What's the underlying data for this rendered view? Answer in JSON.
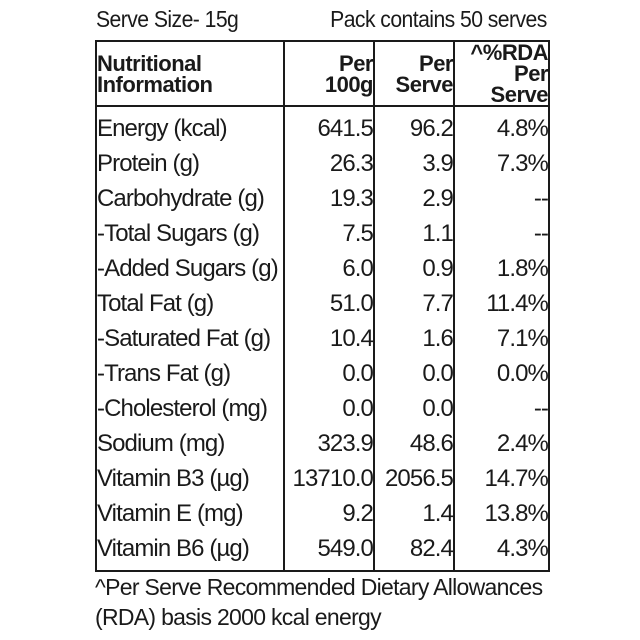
{
  "serve_size": "Serve Size- 15g",
  "pack_contains": "Pack contains 50 serves",
  "headers": {
    "col1_line1": "Nutritional",
    "col1_line2": "Information",
    "col2_line1": "Per",
    "col2_line2": "100g",
    "col3_line1": "Per",
    "col3_line2": "Serve",
    "col4_line1": "^%RDA",
    "col4_line2": "Per Serve"
  },
  "rows": [
    {
      "name": "Energy (kcal)",
      "per100g": "641.5",
      "perServe": "96.2",
      "rda": "4.8%"
    },
    {
      "name": "Protein (g)",
      "per100g": "26.3",
      "perServe": "3.9",
      "rda": "7.3%"
    },
    {
      "name": "Carbohydrate (g)",
      "per100g": "19.3",
      "perServe": "2.9",
      "rda": "--"
    },
    {
      "name": "-Total Sugars (g)",
      "per100g": "7.5",
      "perServe": "1.1",
      "rda": "--"
    },
    {
      "name": "-Added Sugars (g)",
      "per100g": "6.0",
      "perServe": "0.9",
      "rda": "1.8%"
    },
    {
      "name": "Total Fat (g)",
      "per100g": "51.0",
      "perServe": "7.7",
      "rda": "11.4%"
    },
    {
      "name": "-Saturated Fat (g)",
      "per100g": "10.4",
      "perServe": "1.6",
      "rda": "7.1%"
    },
    {
      "name": "-Trans Fat (g)",
      "per100g": "0.0",
      "perServe": "0.0",
      "rda": "0.0%"
    },
    {
      "name": "-Cholesterol (mg)",
      "per100g": "0.0",
      "perServe": "0.0",
      "rda": "--"
    },
    {
      "name": "Sodium (mg)",
      "per100g": "323.9",
      "perServe": "48.6",
      "rda": "2.4%"
    },
    {
      "name": "Vitamin B3 (µg)",
      "per100g": "13710.0",
      "perServe": "2056.5",
      "rda": "14.7%"
    },
    {
      "name": "Vitamin E (mg)",
      "per100g": "9.2",
      "perServe": "1.4",
      "rda": "13.8%"
    },
    {
      "name": "Vitamin B6 (µg)",
      "per100g": "549.0",
      "perServe": "82.4",
      "rda": "4.3%"
    }
  ],
  "footnote_line1": "^Per Serve Recommended Dietary Allowances",
  "footnote_line2": "(RDA) basis 2000 kcal energy"
}
